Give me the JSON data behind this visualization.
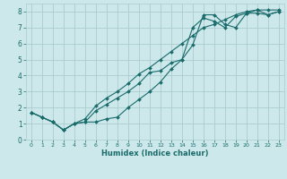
{
  "bg_color": "#cce8ea",
  "grid_color": "#aacdd0",
  "line_color": "#1a6b6b",
  "xlabel": "Humidex (Indice chaleur)",
  "xlim": [
    -0.5,
    23.5
  ],
  "ylim": [
    0,
    8.5
  ],
  "xticks": [
    0,
    1,
    2,
    3,
    4,
    5,
    6,
    7,
    8,
    9,
    10,
    11,
    12,
    13,
    14,
    15,
    16,
    17,
    18,
    19,
    20,
    21,
    22,
    23
  ],
  "yticks": [
    0,
    1,
    2,
    3,
    4,
    5,
    6,
    7,
    8
  ],
  "line1_x": [
    0,
    1,
    2,
    3,
    4,
    5,
    6,
    7,
    8,
    9,
    10,
    11,
    12,
    13,
    14,
    15,
    16,
    17,
    18,
    19,
    20,
    21,
    22,
    23
  ],
  "line1_y": [
    1.7,
    1.4,
    1.1,
    0.6,
    1.0,
    1.1,
    1.1,
    1.3,
    1.4,
    2.0,
    2.5,
    3.0,
    3.6,
    4.4,
    5.0,
    5.9,
    7.8,
    7.8,
    7.2,
    7.0,
    7.9,
    8.1,
    7.8,
    8.0
  ],
  "line2_x": [
    0,
    1,
    2,
    3,
    4,
    5,
    6,
    7,
    8,
    9,
    10,
    11,
    12,
    13,
    14,
    15,
    16,
    17,
    18,
    19,
    20,
    21,
    22,
    23
  ],
  "line2_y": [
    1.7,
    1.4,
    1.1,
    0.6,
    1.0,
    1.1,
    1.8,
    2.2,
    2.6,
    3.0,
    3.5,
    4.2,
    4.3,
    4.8,
    5.0,
    7.0,
    7.6,
    7.4,
    7.0,
    7.7,
    7.9,
    7.9,
    7.8,
    8.0
  ],
  "line3_x": [
    0,
    1,
    2,
    3,
    4,
    5,
    6,
    7,
    8,
    9,
    10,
    11,
    12,
    13,
    14,
    15,
    16,
    17,
    18,
    19,
    20,
    21,
    22,
    23
  ],
  "line3_y": [
    1.7,
    1.4,
    1.1,
    0.6,
    1.0,
    1.3,
    2.1,
    2.6,
    3.0,
    3.5,
    4.1,
    4.5,
    5.0,
    5.5,
    6.0,
    6.5,
    7.0,
    7.2,
    7.5,
    7.8,
    8.0,
    8.1,
    8.1,
    8.1
  ]
}
